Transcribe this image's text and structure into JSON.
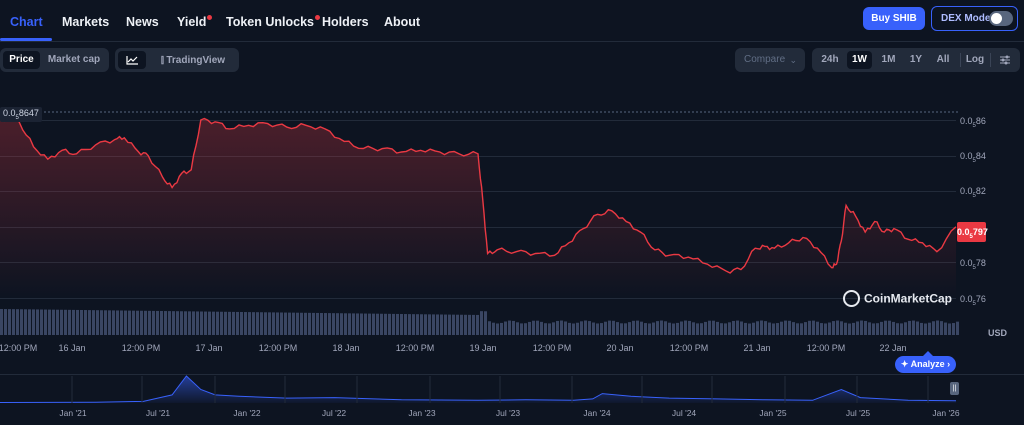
{
  "nav": {
    "tabs": [
      "Chart",
      "Markets",
      "News",
      "Yield",
      "Token Unlocks",
      "Holders",
      "About"
    ],
    "buy_label": "Buy SHIB",
    "dex_label": "DEX Mode"
  },
  "toolbar": {
    "price_label": "Price",
    "mcap_label": "Market cap",
    "tradingview_label": "TradingView",
    "compare_label": "Compare",
    "ranges": [
      "24h",
      "1W",
      "1M",
      "1Y",
      "All"
    ],
    "selected_range": "1W",
    "log_label": "Log"
  },
  "chart": {
    "high_label_prefix": "0.0",
    "high_label_sub": "5",
    "high_label_suffix": "8647",
    "current_prefix": "0.0",
    "current_sub": "5",
    "current_suffix": "797",
    "currency": "USD",
    "watermark": "CoinMarketCap",
    "analyze_label": "Analyze",
    "accent_color": "#ea3943",
    "volume_color": "#3a4663"
  },
  "chart_data": [
    {
      "type": "area",
      "title": "",
      "ylabel": "USD",
      "yticks": [
        {
          "prefix": "0.0",
          "sub": "5",
          "suffix": "86",
          "value": 8.6e-06
        },
        {
          "prefix": "0.0",
          "sub": "5",
          "suffix": "84",
          "value": 8.4e-06
        },
        {
          "prefix": "0.0",
          "sub": "5",
          "suffix": "82",
          "value": 8.2e-06
        },
        {
          "prefix": "0.0",
          "sub": "5",
          "suffix": "78",
          "value": 7.8e-06
        },
        {
          "prefix": "0.0",
          "sub": "5",
          "suffix": "76",
          "value": 7.6e-06
        }
      ],
      "xticks": [
        "12:00 PM",
        "16 Jan",
        "12:00 PM",
        "17 Jan",
        "12:00 PM",
        "18 Jan",
        "12:00 PM",
        "19 Jan",
        "12:00 PM",
        "20 Jan",
        "12:00 PM",
        "21 Jan",
        "12:00 PM",
        "22 Jan"
      ],
      "ylim": [
        7.54e-06,
        8.74e-06
      ],
      "x": [
        0,
        0.02,
        0.035,
        0.05,
        0.065,
        0.08,
        0.1,
        0.12,
        0.13,
        0.145,
        0.155,
        0.17,
        0.18,
        0.19,
        0.2,
        0.21,
        0.225,
        0.24,
        0.26,
        0.28,
        0.3,
        0.32,
        0.34,
        0.36,
        0.38,
        0.4,
        0.42,
        0.44,
        0.46,
        0.48,
        0.5,
        0.505,
        0.51,
        0.52,
        0.54,
        0.56,
        0.58,
        0.595,
        0.61,
        0.625,
        0.64,
        0.655,
        0.67,
        0.685,
        0.7,
        0.72,
        0.74,
        0.76,
        0.775,
        0.79,
        0.8,
        0.81,
        0.825,
        0.84,
        0.855,
        0.87,
        0.875,
        0.88,
        0.885,
        0.895,
        0.905,
        0.915,
        0.925,
        0.935,
        0.95,
        0.965,
        0.98,
        1.0
      ],
      "values": [
        8.61e-06,
        8.59e-06,
        8.45e-06,
        8.38e-06,
        8.43e-06,
        8.41e-06,
        8.46e-06,
        8.49e-06,
        8.5e-06,
        8.42e-06,
        8.4e-06,
        8.28e-06,
        8.22e-06,
        8.3e-06,
        8.32e-06,
        8.6e-06,
        8.59e-06,
        8.55e-06,
        8.57e-06,
        8.58e-06,
        8.56e-06,
        8.57e-06,
        8.55e-06,
        8.48e-06,
        8.44e-06,
        8.44e-06,
        8.42e-06,
        8.43e-06,
        8.42e-06,
        8.41e-06,
        8.41e-06,
        8.15e-06,
        7.85e-06,
        7.87e-06,
        7.86e-06,
        7.85e-06,
        7.84e-06,
        7.91e-06,
        7.99e-06,
        8.07e-06,
        8.09e-06,
        8.03e-06,
        7.97e-06,
        7.87e-06,
        7.84e-06,
        7.83e-06,
        7.79e-06,
        7.75e-06,
        7.76e-06,
        7.88e-06,
        7.89e-06,
        7.88e-06,
        7.91e-06,
        7.94e-06,
        7.88e-06,
        7.77e-06,
        7.79e-06,
        7.92e-06,
        8.12e-06,
        8.06e-06,
        7.97e-06,
        8.03e-06,
        7.97e-06,
        7.99e-06,
        7.93e-06,
        7.91e-06,
        7.86e-06,
        8e-06
      ]
    },
    {
      "type": "area",
      "title": "",
      "xticks": [
        "Jan '21",
        "Jul '21",
        "Jan '22",
        "Jul '22",
        "Jan '23",
        "Jul '23",
        "Jan '24",
        "Jul '24",
        "Jan '25",
        "Jul '25",
        "Jan '26"
      ],
      "ylim": [
        0,
        1
      ],
      "x": [
        0,
        0.1,
        0.15,
        0.18,
        0.195,
        0.21,
        0.225,
        0.25,
        0.3,
        0.35,
        0.42,
        0.5,
        0.55,
        0.6,
        0.62,
        0.63,
        0.66,
        0.7,
        0.75,
        0.8,
        0.85,
        0.88,
        0.9,
        0.95,
        1.0
      ],
      "values": [
        0.02,
        0.03,
        0.06,
        0.3,
        1.0,
        0.5,
        0.3,
        0.25,
        0.18,
        0.2,
        0.12,
        0.1,
        0.12,
        0.1,
        0.15,
        0.35,
        0.25,
        0.18,
        0.15,
        0.12,
        0.1,
        0.5,
        0.2,
        0.1,
        0.08
      ]
    }
  ]
}
